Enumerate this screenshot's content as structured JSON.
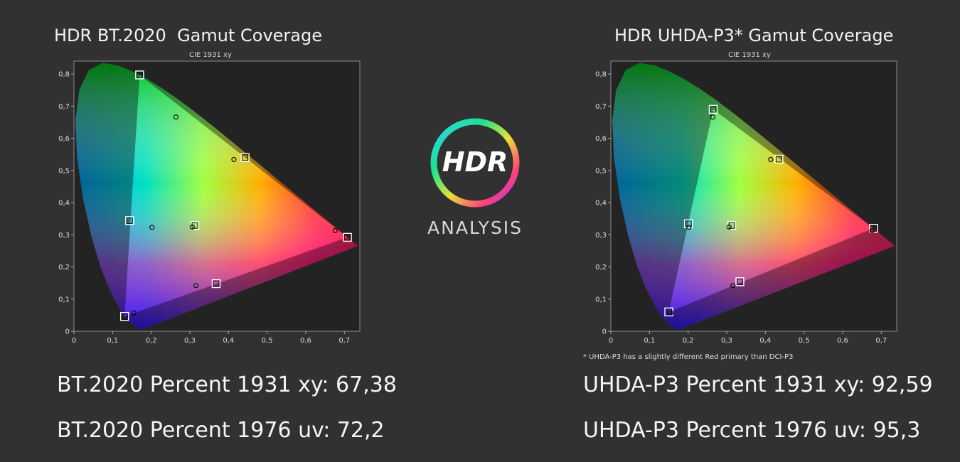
{
  "chart_data": [
    {
      "type": "scatter",
      "title": "HDR BT.2020  Gamut Coverage",
      "subtitle": "CIE 1931 xy",
      "xlim": [
        0,
        0.74
      ],
      "ylim": [
        0,
        0.84
      ],
      "x_ticks": [
        "0",
        "0,1",
        "0,2",
        "0,3",
        "0,4",
        "0,5",
        "0,6",
        "0,7"
      ],
      "y_ticks": [
        "0",
        "0,1",
        "0,2",
        "0,3",
        "0,4",
        "0,5",
        "0,6",
        "0,7",
        "0,8"
      ],
      "target_points": [
        {
          "x": 0.708,
          "y": 0.292
        },
        {
          "x": 0.17,
          "y": 0.797
        },
        {
          "x": 0.131,
          "y": 0.046
        },
        {
          "x": 0.443,
          "y": 0.54
        },
        {
          "x": 0.144,
          "y": 0.344
        },
        {
          "x": 0.368,
          "y": 0.148
        },
        {
          "x": 0.313,
          "y": 0.329
        }
      ],
      "measured_points": [
        {
          "x": 0.676,
          "y": 0.313
        },
        {
          "x": 0.264,
          "y": 0.666
        },
        {
          "x": 0.155,
          "y": 0.057
        },
        {
          "x": 0.414,
          "y": 0.534
        },
        {
          "x": 0.202,
          "y": 0.323
        },
        {
          "x": 0.316,
          "y": 0.142
        },
        {
          "x": 0.306,
          "y": 0.324
        }
      ],
      "gamut": [
        [
          0.708,
          0.292
        ],
        [
          0.17,
          0.797
        ],
        [
          0.131,
          0.046
        ]
      ]
    },
    {
      "type": "scatter",
      "title": "HDR UHDA-P3* Gamut Coverage",
      "subtitle": "CIE 1931 xy",
      "xlim": [
        0,
        0.74
      ],
      "ylim": [
        0,
        0.84
      ],
      "x_ticks": [
        "0",
        "0,1",
        "0,2",
        "0,3",
        "0,4",
        "0,5",
        "0,6",
        "0,7"
      ],
      "y_ticks": [
        "0",
        "0,1",
        "0,2",
        "0,3",
        "0,4",
        "0,5",
        "0,6",
        "0,7",
        "0,8"
      ],
      "target_points": [
        {
          "x": 0.68,
          "y": 0.32
        },
        {
          "x": 0.265,
          "y": 0.69
        },
        {
          "x": 0.15,
          "y": 0.06
        },
        {
          "x": 0.435,
          "y": 0.535
        },
        {
          "x": 0.201,
          "y": 0.334
        },
        {
          "x": 0.334,
          "y": 0.154
        },
        {
          "x": 0.313,
          "y": 0.329
        }
      ],
      "measured_points": [
        {
          "x": 0.676,
          "y": 0.313
        },
        {
          "x": 0.264,
          "y": 0.666
        },
        {
          "x": 0.155,
          "y": 0.057
        },
        {
          "x": 0.414,
          "y": 0.534
        },
        {
          "x": 0.202,
          "y": 0.323
        },
        {
          "x": 0.316,
          "y": 0.142
        },
        {
          "x": 0.306,
          "y": 0.324
        }
      ],
      "gamut": [
        [
          0.68,
          0.32
        ],
        [
          0.265,
          0.69
        ],
        [
          0.15,
          0.06
        ]
      ]
    }
  ],
  "left": {
    "title": "HDR BT.2020  Gamut Coverage",
    "subtitle": "CIE 1931 xy",
    "stat_xy": "BT.2020 Percent 1931 xy: 67,38",
    "stat_uv": "BT.2020 Percent 1976 uv: 72,2"
  },
  "right": {
    "title": "HDR UHDA-P3* Gamut Coverage",
    "subtitle": "CIE 1931 xy",
    "note": "* UHDA-P3 has a slightly different Red primary than DCI-P3",
    "stat_xy": "UHDA-P3 Percent 1931 xy: 92,59",
    "stat_uv": "UHDA-P3 Percent 1976 uv: 95,3"
  },
  "logo": {
    "text": "HDR",
    "caption": "ANALYSIS"
  },
  "colors": {
    "background": "#313131",
    "plot_bg": "#232323",
    "text": "#f2f2f2"
  }
}
